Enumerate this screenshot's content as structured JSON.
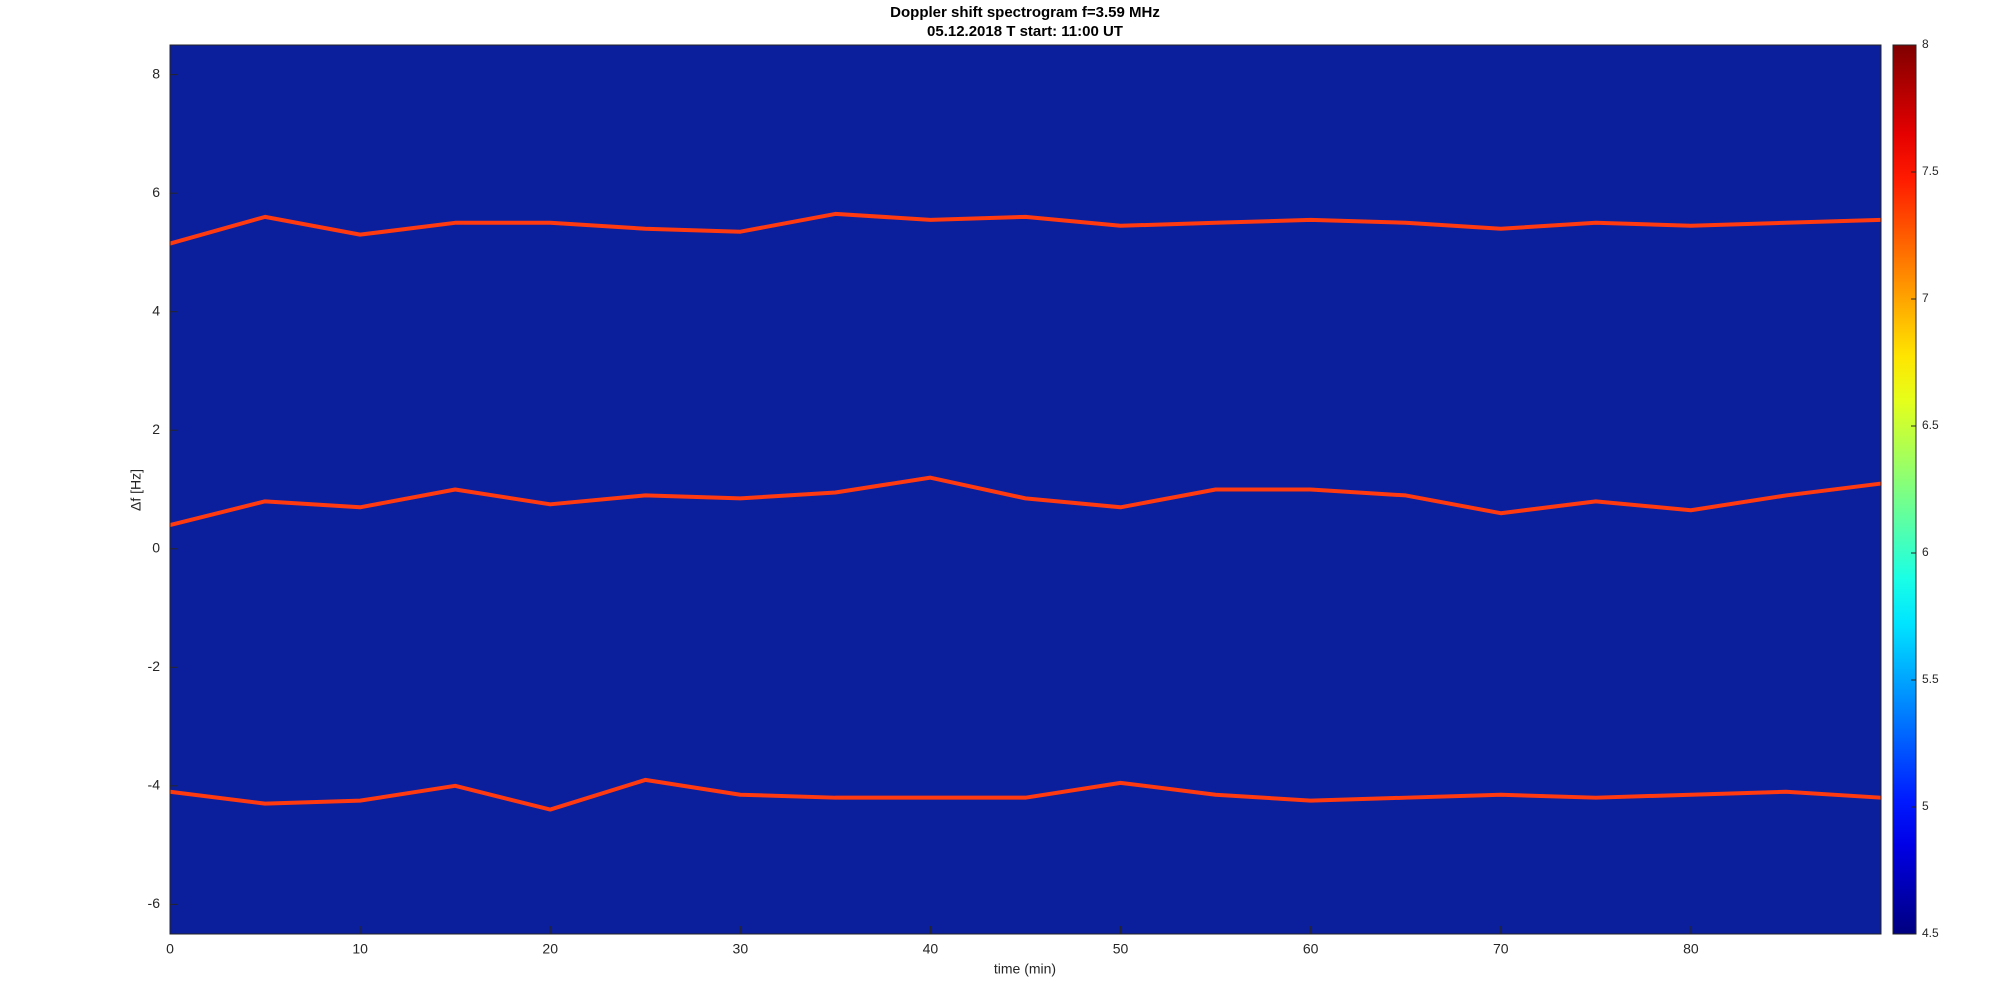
{
  "chart_data": {
    "type": "spectrogram",
    "title": "Doppler shift spectrogram f=3.59 MHz",
    "subtitle": "05.12.2018   T start: 11:00 UT",
    "x_label": "time (min)",
    "y_label": "Δf [Hz]",
    "xlim": [
      0,
      90
    ],
    "xticks": [
      0,
      10,
      20,
      30,
      40,
      50,
      60,
      70,
      80
    ],
    "ylim": [
      -6.5,
      8.5
    ],
    "yticks": [
      -6,
      -4,
      -2,
      0,
      2,
      4,
      6,
      8
    ],
    "plot_background": "#0b1f9c",
    "colormap": "jet",
    "clim": [
      4.5,
      8
    ],
    "cticks": [
      4.5,
      5,
      5.5,
      6,
      6.5,
      7,
      7.5,
      8
    ],
    "x": [
      0,
      5,
      10,
      15,
      20,
      25,
      30,
      35,
      40,
      45,
      50,
      55,
      60,
      65,
      70,
      75,
      80,
      85,
      90
    ],
    "series": [
      {
        "color": "#ff3a10",
        "values": [
          5.15,
          5.6,
          5.3,
          5.5,
          5.5,
          5.4,
          5.35,
          5.65,
          5.55,
          5.6,
          5.45,
          5.5,
          5.55,
          5.5,
          5.4,
          5.5,
          5.45,
          5.5,
          5.55
        ]
      },
      {
        "color": "#ff3a10",
        "values": [
          0.4,
          0.8,
          0.7,
          1.0,
          0.75,
          0.9,
          0.85,
          0.95,
          1.2,
          0.85,
          0.7,
          1.0,
          1.0,
          0.9,
          0.6,
          0.8,
          0.65,
          0.9,
          1.1
        ]
      },
      {
        "color": "#ff3a10",
        "values": [
          -4.1,
          -4.3,
          -4.25,
          -4.0,
          -4.4,
          -3.9,
          -4.15,
          -4.2,
          -4.2,
          -4.2,
          -3.95,
          -4.15,
          -4.25,
          -4.2,
          -4.15,
          -4.2,
          -4.15,
          -4.1,
          -4.2
        ]
      }
    ]
  }
}
